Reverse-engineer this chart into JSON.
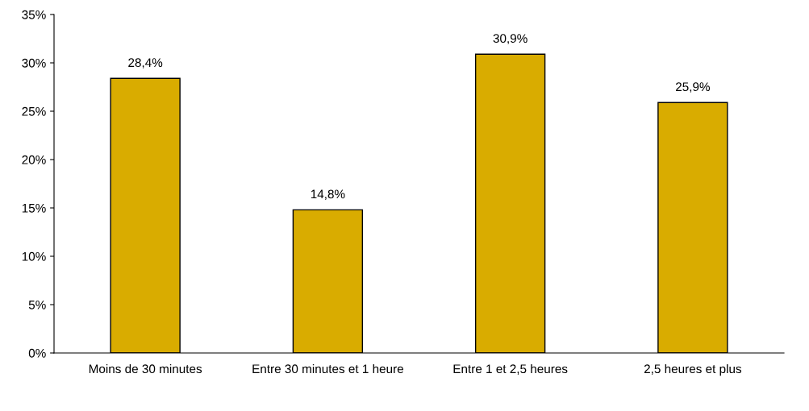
{
  "chart_data": {
    "type": "bar",
    "categories": [
      "Moins de 30 minutes",
      "Entre 30 minutes et 1 heure",
      "Entre 1 et 2,5 heures",
      "2,5 heures et plus"
    ],
    "values": [
      28.4,
      14.8,
      30.9,
      25.9
    ],
    "value_labels": [
      "28,4%",
      "14,8%",
      "30,9%",
      "25,9%"
    ],
    "color": "#d9ac00",
    "ylim": [
      0,
      35
    ],
    "yticks": [
      {
        "value": 0,
        "label": "0%"
      },
      {
        "value": 5,
        "label": "5%"
      },
      {
        "value": 10,
        "label": "10%"
      },
      {
        "value": 15,
        "label": "15%"
      },
      {
        "value": 20,
        "label": "20%"
      },
      {
        "value": 25,
        "label": "25%"
      },
      {
        "value": 30,
        "label": "30%"
      },
      {
        "value": 35,
        "label": "35%"
      }
    ],
    "grid": false
  }
}
